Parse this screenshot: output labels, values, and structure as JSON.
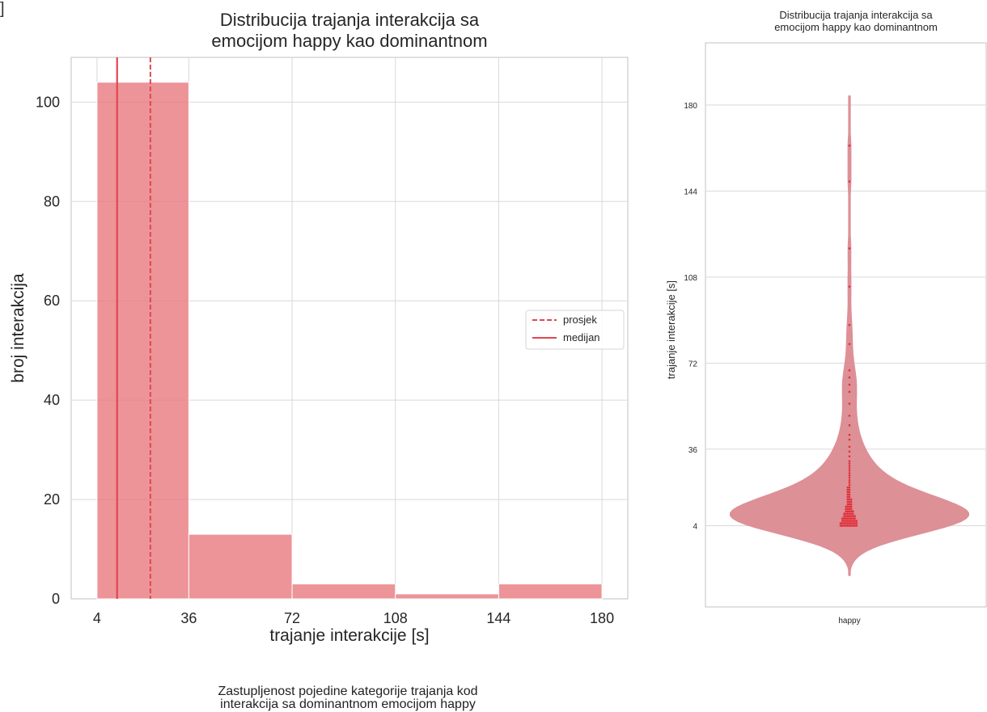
{
  "chart_data": [
    {
      "type": "bar",
      "title": "Distribucija trajanja interakcija sa\nemocijom happy kao dominantnom",
      "xlabel": "trajanje interakcije [s]",
      "ylabel": "broj interakcija",
      "bins": [
        [
          4,
          36
        ],
        [
          36,
          72
        ],
        [
          72,
          108
        ],
        [
          108,
          144
        ],
        [
          144,
          180
        ]
      ],
      "values": [
        104,
        13,
        3,
        1,
        3
      ],
      "xticks": [
        4,
        36,
        72,
        108,
        144,
        180
      ],
      "yticks": [
        0,
        20,
        40,
        60,
        80,
        100
      ],
      "xlim": [
        -5,
        189
      ],
      "ylim": [
        0,
        109
      ],
      "mean": 22.6,
      "median": 11,
      "legend": [
        {
          "label": "prosjek",
          "style": "dashed"
        },
        {
          "label": "medijan",
          "style": "solid"
        }
      ],
      "legend_position": "center-right",
      "grid": true,
      "bar_color": "#e8767c",
      "line_color": "#e0474f"
    },
    {
      "type": "violin",
      "title": "Distribucija trajanja interakcija sa\nemocijom happy kao dominantnom",
      "xlabel": "",
      "ylabel": "trajanje interakcije [s]",
      "categories": [
        "happy"
      ],
      "yticks": [
        4,
        36,
        72,
        108,
        144,
        180
      ],
      "ylim": [
        -30,
        206
      ],
      "points": [
        4,
        4,
        4,
        4,
        4,
        4,
        4,
        4,
        4,
        4,
        5,
        5,
        5,
        5,
        5,
        5,
        5,
        5,
        5,
        5,
        6,
        6,
        6,
        6,
        6,
        6,
        6,
        6,
        6,
        7,
        7,
        7,
        7,
        7,
        7,
        7,
        7,
        8,
        8,
        8,
        8,
        8,
        8,
        8,
        9,
        9,
        9,
        9,
        9,
        9,
        10,
        10,
        10,
        10,
        10,
        11,
        11,
        11,
        11,
        12,
        12,
        12,
        12,
        13,
        13,
        13,
        14,
        14,
        14,
        15,
        15,
        15,
        16,
        16,
        17,
        17,
        18,
        18,
        19,
        19,
        20,
        20,
        21,
        22,
        23,
        24,
        25,
        26,
        27,
        28,
        29,
        30,
        31,
        33,
        35,
        37,
        40,
        42,
        46,
        50,
        55,
        60,
        63,
        66,
        69,
        80,
        88,
        104,
        120,
        148,
        163
      ],
      "grid": true,
      "violin_color": "#db8a90",
      "point_color": "#e0303a"
    }
  ],
  "footer": {
    "title": "Zastupljenost pojedine kategorije trajanja kod\ninterakcija sa dominantnom emocijom happy"
  },
  "bracket": "]"
}
